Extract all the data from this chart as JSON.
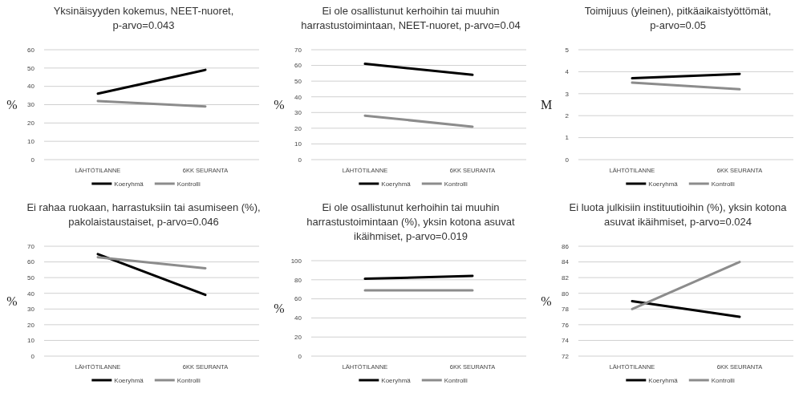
{
  "chart_data": [
    {
      "type": "line",
      "title": "Yksinäisyyden kokemus, NEET-nuoret, p-arvo=0.043",
      "ylabel": "%",
      "categories": [
        "LÄHTÖTILANNE",
        "6KK SEURANTA"
      ],
      "series": [
        {
          "name": "Koeryhmä",
          "color": "#000000",
          "values": [
            36,
            49
          ]
        },
        {
          "name": "Kontrolli",
          "color": "#8c8c8c",
          "values": [
            32,
            29
          ]
        }
      ],
      "ylim": [
        0,
        60
      ],
      "yticks": [
        0,
        10,
        20,
        30,
        40,
        50,
        60
      ],
      "grid": "y",
      "legend": "bottom",
      "marker": "none"
    },
    {
      "type": "line",
      "title": "Ei ole osallistunut kerhoihin tai muuhin harrastustoimintaan, NEET-nuoret, p-arvo=0.04",
      "ylabel": "%",
      "categories": [
        "LÄHTÖTILANNE",
        "6KK SEURANTA"
      ],
      "series": [
        {
          "name": "Koeryhmä",
          "color": "#000000",
          "values": [
            61,
            54
          ]
        },
        {
          "name": "Kontrolli",
          "color": "#8c8c8c",
          "values": [
            28,
            21
          ]
        }
      ],
      "ylim": [
        0,
        70
      ],
      "yticks": [
        0,
        10,
        20,
        30,
        40,
        50,
        60,
        70
      ],
      "grid": "y",
      "legend": "bottom",
      "marker": "none"
    },
    {
      "type": "line",
      "title": "Toimijuus (yleinen), pitkäaikaistyöttömät, p-arvo=0.05",
      "ylabel": "M",
      "categories": [
        "LÄHTÖTILANNE",
        "6KK SEURANTA"
      ],
      "series": [
        {
          "name": "Koeryhmä",
          "color": "#000000",
          "values": [
            3.7,
            3.9
          ]
        },
        {
          "name": "Kontrolli",
          "color": "#8c8c8c",
          "values": [
            3.5,
            3.2
          ]
        }
      ],
      "ylim": [
        0,
        5
      ],
      "yticks": [
        0,
        1,
        2,
        3,
        4,
        5
      ],
      "grid": "y",
      "legend": "bottom",
      "marker": "none"
    },
    {
      "type": "line",
      "title": "Ei rahaa ruokaan, harrastuksiin tai asumiseen (%), pakolaistaustaiset, p-arvo=0.046",
      "ylabel": "%",
      "categories": [
        "LÄHTÖTILANNE",
        "6KK SEURANTA"
      ],
      "series": [
        {
          "name": "Koeryhmä",
          "color": "#000000",
          "values": [
            65,
            39
          ]
        },
        {
          "name": "Kontrolli",
          "color": "#8c8c8c",
          "values": [
            63,
            56
          ]
        }
      ],
      "ylim": [
        0,
        70
      ],
      "yticks": [
        0,
        10,
        20,
        30,
        40,
        50,
        60,
        70
      ],
      "grid": "y",
      "legend": "bottom",
      "marker": "none"
    },
    {
      "type": "line",
      "title": "Ei ole osallistunut kerhoihin tai muuhin harrastustoimintaan (%), yksin kotona asuvat ikäihmiset, p-arvo=0.019",
      "ylabel": "%",
      "categories": [
        "LÄHTÖTILANNE",
        "6KK SEURANTA"
      ],
      "series": [
        {
          "name": "Koeryhmä",
          "color": "#000000",
          "values": [
            81,
            84
          ]
        },
        {
          "name": "Kontrolli",
          "color": "#8c8c8c",
          "values": [
            69,
            69
          ]
        }
      ],
      "ylim": [
        0,
        100
      ],
      "yticks": [
        0,
        20,
        40,
        60,
        80,
        100
      ],
      "grid": "y",
      "legend": "bottom",
      "marker": "none"
    },
    {
      "type": "line",
      "title": "Ei luota julkisiin instituutioihin (%), yksin kotona asuvat ikäihmiset, p-arvo=0.024",
      "ylabel": "%",
      "categories": [
        "LÄHTÖTILANNE",
        "6KK SEURANTA"
      ],
      "series": [
        {
          "name": "Koeryhmä",
          "color": "#000000",
          "values": [
            79,
            77
          ]
        },
        {
          "name": "Kontrolli",
          "color": "#8c8c8c",
          "values": [
            78,
            84
          ]
        }
      ],
      "ylim": [
        72,
        86
      ],
      "yticks": [
        72,
        74,
        76,
        78,
        80,
        82,
        84,
        86
      ],
      "grid": "y",
      "legend": "bottom",
      "marker": "none"
    }
  ]
}
